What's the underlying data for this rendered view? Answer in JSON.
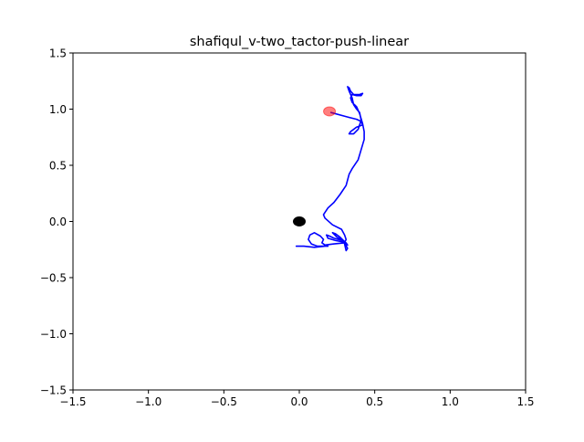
{
  "chart_data": {
    "type": "line",
    "title": "shafiqul_v-two_tactor-push-linear",
    "xlabel": "",
    "ylabel": "",
    "xlim": [
      -1.5,
      1.5
    ],
    "ylim": [
      -1.5,
      1.5
    ],
    "xticks": [
      -1.5,
      -1.0,
      -0.5,
      0.0,
      0.5,
      1.0,
      1.5
    ],
    "yticks": [
      -1.5,
      -1.0,
      -0.5,
      0.0,
      0.5,
      1.0,
      1.5
    ],
    "xtick_labels": [
      "−1.5",
      "−1.0",
      "−0.5",
      "0.0",
      "0.5",
      "1.0",
      "1.5"
    ],
    "ytick_labels": [
      "−1.5",
      "−1.0",
      "−0.5",
      "0.0",
      "0.5",
      "1.0",
      "1.5"
    ],
    "grid": false,
    "legend": "none",
    "series": [
      {
        "color": "#0000ff",
        "points": [
          [
            0.21,
            0.97
          ],
          [
            0.32,
            0.93
          ],
          [
            0.38,
            0.91
          ],
          [
            0.41,
            0.89
          ],
          [
            0.42,
            0.86
          ],
          [
            0.38,
            0.84
          ],
          [
            0.34,
            0.8
          ],
          [
            0.33,
            0.78
          ],
          [
            0.36,
            0.78
          ],
          [
            0.39,
            0.82
          ],
          [
            0.4,
            0.86
          ],
          [
            0.41,
            0.9
          ],
          [
            0.4,
            0.97
          ],
          [
            0.38,
            1.0
          ],
          [
            0.36,
            1.04
          ],
          [
            0.35,
            1.1
          ],
          [
            0.33,
            1.16
          ],
          [
            0.32,
            1.2
          ],
          [
            0.33,
            1.19
          ],
          [
            0.34,
            1.16
          ],
          [
            0.36,
            1.13
          ],
          [
            0.4,
            1.13
          ],
          [
            0.42,
            1.14
          ],
          [
            0.41,
            1.12
          ],
          [
            0.38,
            1.12
          ],
          [
            0.35,
            1.13
          ],
          [
            0.34,
            1.1
          ],
          [
            0.35,
            1.06
          ],
          [
            0.38,
            1.02
          ],
          [
            0.4,
            0.96
          ],
          [
            0.42,
            0.87
          ],
          [
            0.43,
            0.8
          ],
          [
            0.43,
            0.73
          ],
          [
            0.41,
            0.64
          ],
          [
            0.39,
            0.55
          ],
          [
            0.35,
            0.47
          ],
          [
            0.33,
            0.42
          ],
          [
            0.31,
            0.32
          ],
          [
            0.27,
            0.24
          ],
          [
            0.23,
            0.17
          ],
          [
            0.19,
            0.12
          ],
          [
            0.16,
            0.06
          ],
          [
            0.17,
            0.03
          ],
          [
            0.22,
            -0.03
          ],
          [
            0.28,
            -0.07
          ],
          [
            0.3,
            -0.12
          ],
          [
            0.31,
            -0.16
          ],
          [
            0.3,
            -0.19
          ],
          [
            0.32,
            -0.24
          ],
          [
            0.31,
            -0.26
          ],
          [
            0.3,
            -0.2
          ],
          [
            0.29,
            -0.17
          ],
          [
            0.26,
            -0.16
          ],
          [
            0.23,
            -0.15
          ],
          [
            0.2,
            -0.13
          ],
          [
            0.18,
            -0.12
          ],
          [
            0.19,
            -0.15
          ],
          [
            0.24,
            -0.17
          ],
          [
            0.28,
            -0.18
          ],
          [
            0.31,
            -0.19
          ],
          [
            0.32,
            -0.21
          ],
          [
            0.3,
            -0.18
          ],
          [
            0.27,
            -0.14
          ],
          [
            0.24,
            -0.11
          ],
          [
            0.22,
            -0.1
          ],
          [
            0.25,
            -0.14
          ],
          [
            0.29,
            -0.17
          ],
          [
            0.3,
            -0.19
          ],
          [
            0.23,
            -0.2
          ],
          [
            0.17,
            -0.21
          ],
          [
            0.15,
            -0.19
          ],
          [
            0.16,
            -0.16
          ],
          [
            0.14,
            -0.13
          ],
          [
            0.1,
            -0.1
          ],
          [
            0.07,
            -0.12
          ],
          [
            0.06,
            -0.16
          ],
          [
            0.08,
            -0.2
          ],
          [
            0.12,
            -0.22
          ],
          [
            0.16,
            -0.22
          ],
          [
            0.19,
            -0.22
          ],
          [
            0.17,
            -0.22
          ],
          [
            0.1,
            -0.23
          ],
          [
            0.03,
            -0.22
          ],
          [
            -0.02,
            -0.22
          ]
        ]
      }
    ],
    "markers": [
      {
        "x": 0.0,
        "y": 0.0,
        "color": "#000000",
        "alpha": 1.0
      },
      {
        "x": 0.2,
        "y": 0.98,
        "color": "#ff0000",
        "alpha": 0.5
      }
    ]
  }
}
